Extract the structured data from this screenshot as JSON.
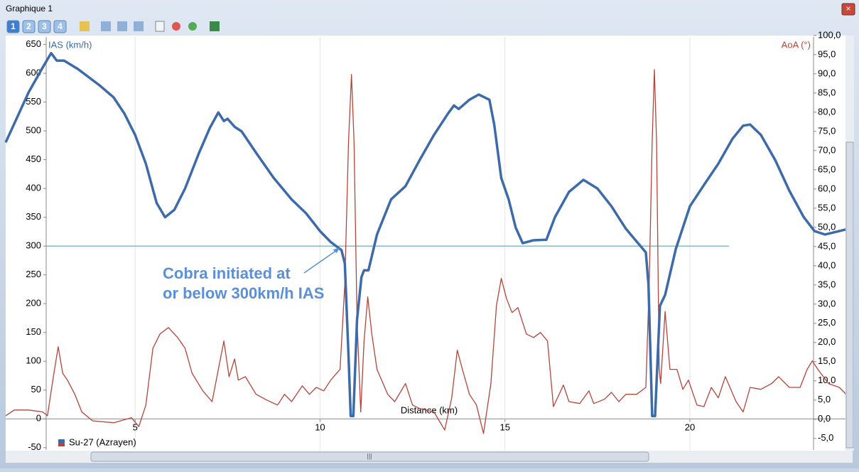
{
  "window": {
    "title": "Graphique 1",
    "toolbar": [
      "1",
      "2",
      "3",
      "4"
    ]
  },
  "chart_data": {
    "type": "line",
    "xlabel": "Distance (km)",
    "ylabel": "IAS (km/h)",
    "y2label": "AoA (°)",
    "xlim": [
      1.5,
      24.4
    ],
    "xticks": [
      5,
      10,
      15,
      20
    ],
    "ylim": [
      -54,
      663
    ],
    "yticks": [
      -50,
      0,
      50,
      100,
      150,
      200,
      250,
      300,
      350,
      400,
      450,
      500,
      550,
      600,
      650
    ],
    "y2lim": [
      -8,
      99.6
    ],
    "y2ticks": [
      {
        "value": -5,
        "label": "-5,0"
      },
      {
        "value": 0,
        "label": "0,0"
      },
      {
        "value": 5,
        "label": "5,0"
      },
      {
        "value": 10,
        "label": "10,0"
      },
      {
        "value": 15,
        "label": "15,0"
      },
      {
        "value": 20,
        "label": "20,0"
      },
      {
        "value": 25,
        "label": "25,0"
      },
      {
        "value": 30,
        "label": "30,0"
      },
      {
        "value": 35,
        "label": "35,0"
      },
      {
        "value": 40,
        "label": "40,0"
      },
      {
        "value": 45,
        "label": "45,0"
      },
      {
        "value": 50,
        "label": "50,0"
      },
      {
        "value": 55,
        "label": "55,0"
      },
      {
        "value": 60,
        "label": "60,0"
      },
      {
        "value": 65,
        "label": "65,0"
      },
      {
        "value": 70,
        "label": "70,0"
      },
      {
        "value": 75,
        "label": "75,0"
      },
      {
        "value": 80,
        "label": "80,0"
      },
      {
        "value": 85,
        "label": "85,0"
      },
      {
        "value": 90,
        "label": "90,0"
      },
      {
        "value": 95,
        "label": "95,0"
      },
      {
        "value": 100,
        "label": "100,0"
      }
    ],
    "xgrid": true,
    "legend": {
      "label": "Su-27 (Azrayen)",
      "colors": [
        "#3d6aa8",
        "#b5443a"
      ]
    },
    "hline": {
      "value": 300,
      "x": [
        2.6,
        21.06
      ],
      "color": "#4a9aa0"
    },
    "annotation": {
      "lines": [
        "Cobra initiated at",
        "or below 300km/h IAS"
      ],
      "arrow_to": [
        10.58,
        300
      ],
      "color": "#5b8fd6"
    },
    "series": [
      {
        "color": "#3d6aa8",
        "width": 3.5,
        "x": [
          1.5,
          2.12,
          2.5,
          2.73,
          2.88,
          3.08,
          3.46,
          4.04,
          4.42,
          4.71,
          5.0,
          5.29,
          5.58,
          5.81,
          6.06,
          6.35,
          6.73,
          7.02,
          7.25,
          7.4,
          7.5,
          7.69,
          7.88,
          8.27,
          8.75,
          9.23,
          9.62,
          10.0,
          10.29,
          10.58,
          10.67,
          10.77,
          10.83,
          10.9,
          11.0,
          11.12,
          11.19,
          11.31,
          11.54,
          11.92,
          12.31,
          12.69,
          13.08,
          13.46,
          13.62,
          13.75,
          14.04,
          14.29,
          14.58,
          14.71,
          14.9,
          15.1,
          15.29,
          15.48,
          15.77,
          16.12,
          16.35,
          16.73,
          17.12,
          17.5,
          17.88,
          18.27,
          18.65,
          18.81,
          18.88,
          18.98,
          19.06,
          19.19,
          19.33,
          19.62,
          20.0,
          20.38,
          20.77,
          21.15,
          21.44,
          21.63,
          21.92,
          22.31,
          22.69,
          23.08,
          23.37,
          23.65,
          24.04,
          24.42
        ],
        "values": [
          480,
          567,
          610,
          635,
          622,
          622,
          607,
          579,
          558,
          530,
          493,
          443,
          375,
          350,
          363,
          400,
          462,
          505,
          532,
          517,
          521,
          507,
          499,
          462,
          418,
          381,
          357,
          326,
          307,
          293,
          270,
          110,
          5,
          5,
          172,
          246,
          258,
          258,
          320,
          381,
          404,
          449,
          493,
          530,
          544,
          538,
          554,
          563,
          554,
          511,
          418,
          381,
          332,
          305,
          310,
          311,
          350,
          394,
          415,
          400,
          369,
          330,
          301,
          289,
          233,
          5,
          5,
          196,
          215,
          295,
          369,
          406,
          443,
          486,
          509,
          511,
          493,
          449,
          396,
          350,
          326,
          320,
          326,
          332
        ]
      },
      {
        "color": "#b5443a",
        "width": 1.3,
        "axis": "y2",
        "x": [
          1.5,
          1.73,
          2.12,
          2.5,
          2.63,
          2.79,
          2.92,
          3.04,
          3.17,
          3.37,
          3.56,
          3.85,
          4.42,
          4.9,
          5.1,
          5.29,
          5.48,
          5.67,
          5.9,
          6.15,
          6.35,
          6.54,
          6.83,
          7.08,
          7.25,
          7.4,
          7.54,
          7.69,
          7.79,
          7.98,
          8.27,
          8.56,
          8.85,
          9.04,
          9.23,
          9.52,
          9.71,
          9.9,
          10.1,
          10.29,
          10.54,
          10.67,
          10.77,
          10.85,
          10.92,
          11.0,
          11.1,
          11.19,
          11.29,
          11.4,
          11.54,
          11.83,
          12.02,
          12.31,
          12.5,
          12.69,
          13.08,
          13.37,
          13.56,
          13.71,
          13.85,
          14.04,
          14.23,
          14.42,
          14.62,
          14.77,
          14.9,
          15.04,
          15.19,
          15.35,
          15.58,
          15.77,
          15.96,
          16.15,
          16.31,
          16.58,
          16.73,
          17.02,
          17.27,
          17.4,
          17.69,
          17.88,
          18.08,
          18.27,
          18.56,
          18.81,
          18.9,
          18.98,
          19.04,
          19.1,
          19.17,
          19.21,
          19.33,
          19.46,
          19.65,
          19.81,
          19.96,
          20.19,
          20.38,
          20.58,
          20.77,
          20.96,
          21.25,
          21.44,
          21.63,
          21.92,
          22.21,
          22.4,
          22.69,
          22.98,
          23.17,
          23.31,
          23.46,
          23.75,
          24.04,
          24.42
        ],
        "values": [
          0.9,
          2.4,
          2.4,
          1.9,
          0.9,
          11.1,
          18.9,
          12.0,
          10.2,
          6.5,
          1.9,
          -0.4,
          -0.9,
          0.4,
          -1.9,
          3.7,
          18.5,
          22.2,
          23.9,
          21.3,
          18.5,
          12.0,
          7.4,
          4.6,
          13.0,
          20.4,
          11.1,
          15.7,
          10.2,
          11.1,
          6.5,
          5.0,
          3.7,
          6.5,
          4.6,
          8.7,
          6.5,
          8.3,
          7.4,
          10.2,
          13.0,
          35.2,
          72.2,
          89.8,
          72.2,
          25.9,
          1.9,
          20.4,
          31.9,
          22.2,
          13.0,
          6.5,
          4.6,
          9.3,
          3.7,
          2.8,
          1.9,
          -2.8,
          5.6,
          18.0,
          13.0,
          6.5,
          3.7,
          -3.7,
          9.3,
          29.6,
          36.7,
          31.5,
          27.8,
          29.1,
          22.2,
          21.3,
          22.6,
          20.4,
          3.3,
          8.9,
          4.6,
          4.1,
          7.4,
          4.1,
          5.2,
          7.0,
          4.6,
          6.5,
          6.5,
          8.3,
          35.2,
          72.2,
          91.1,
          72.2,
          13.0,
          9.3,
          28.1,
          13.0,
          13.0,
          7.8,
          10.2,
          3.7,
          3.3,
          8.3,
          5.6,
          11.1,
          4.6,
          1.9,
          8.3,
          7.8,
          9.3,
          11.1,
          8.3,
          8.3,
          13.0,
          15.2,
          13.0,
          9.3,
          8.3,
          4.6
        ]
      }
    ]
  }
}
